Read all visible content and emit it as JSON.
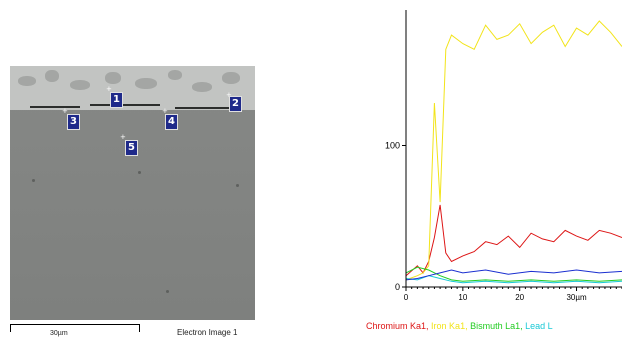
{
  "sem": {
    "scale_label": "30µm",
    "caption": "Electron Image 1",
    "markers": [
      "1",
      "2",
      "3",
      "4",
      "5"
    ]
  },
  "legend": {
    "entries": [
      {
        "label": "Chromium Ka1,",
        "color": "#dd1515"
      },
      {
        "label": "Iron Ka1,",
        "color": "#f2e41a"
      },
      {
        "label": "Bismuth La1,",
        "color": "#22cc22"
      },
      {
        "label": "Lead L",
        "color": "#19c9d6"
      }
    ]
  },
  "chart_data": {
    "type": "line",
    "title": "",
    "xlabel": "",
    "ylabel": "",
    "xlim": [
      0,
      38
    ],
    "ylim": [
      0,
      200
    ],
    "x_ticks": [
      0,
      10,
      20,
      30
    ],
    "x_tick_labels": [
      "0",
      "10",
      "20",
      "30µm"
    ],
    "y_ticks": [
      0,
      100
    ],
    "y_tick_labels": [
      "0",
      "100"
    ],
    "grid": false,
    "legend_position": "bottom",
    "series": [
      {
        "name": "Chromium Ka1",
        "color": "#dd1515",
        "x": [
          0,
          2,
          3,
          4,
          5,
          6,
          7,
          8,
          10,
          12,
          14,
          16,
          18,
          20,
          22,
          24,
          26,
          28,
          30,
          32,
          34,
          36,
          38
        ],
        "y": [
          8,
          15,
          10,
          18,
          35,
          58,
          24,
          18,
          22,
          25,
          32,
          30,
          36,
          28,
          38,
          34,
          32,
          40,
          36,
          33,
          40,
          38,
          35
        ]
      },
      {
        "name": "Iron Ka1",
        "color": "#f2e41a",
        "x": [
          0,
          2,
          3,
          4,
          5,
          6,
          7,
          8,
          10,
          12,
          14,
          16,
          18,
          20,
          22,
          24,
          26,
          28,
          30,
          32,
          34,
          36,
          38
        ],
        "y": [
          5,
          8,
          10,
          15,
          130,
          60,
          168,
          178,
          172,
          168,
          185,
          175,
          178,
          186,
          172,
          180,
          185,
          170,
          183,
          178,
          188,
          180,
          170
        ]
      },
      {
        "name": "Bismuth La1",
        "color": "#22cc22",
        "x": [
          0,
          2,
          4,
          6,
          8,
          10,
          14,
          18,
          22,
          26,
          30,
          34,
          38
        ],
        "y": [
          10,
          14,
          12,
          8,
          5,
          4,
          5,
          4,
          5,
          4,
          5,
          4,
          5
        ]
      },
      {
        "name": "Lead L",
        "color": "#19c9d6",
        "x": [
          0,
          2,
          4,
          6,
          8,
          10,
          14,
          18,
          22,
          26,
          30,
          34,
          38
        ],
        "y": [
          6,
          5,
          8,
          6,
          4,
          3,
          4,
          3,
          4,
          3,
          4,
          3,
          4
        ]
      },
      {
        "name": "",
        "color": "#1a2fd0",
        "x": [
          0,
          2,
          4,
          6,
          8,
          10,
          14,
          18,
          22,
          26,
          30,
          34,
          38
        ],
        "y": [
          5,
          6,
          8,
          10,
          12,
          10,
          12,
          9,
          11,
          10,
          12,
          10,
          11
        ]
      }
    ]
  }
}
